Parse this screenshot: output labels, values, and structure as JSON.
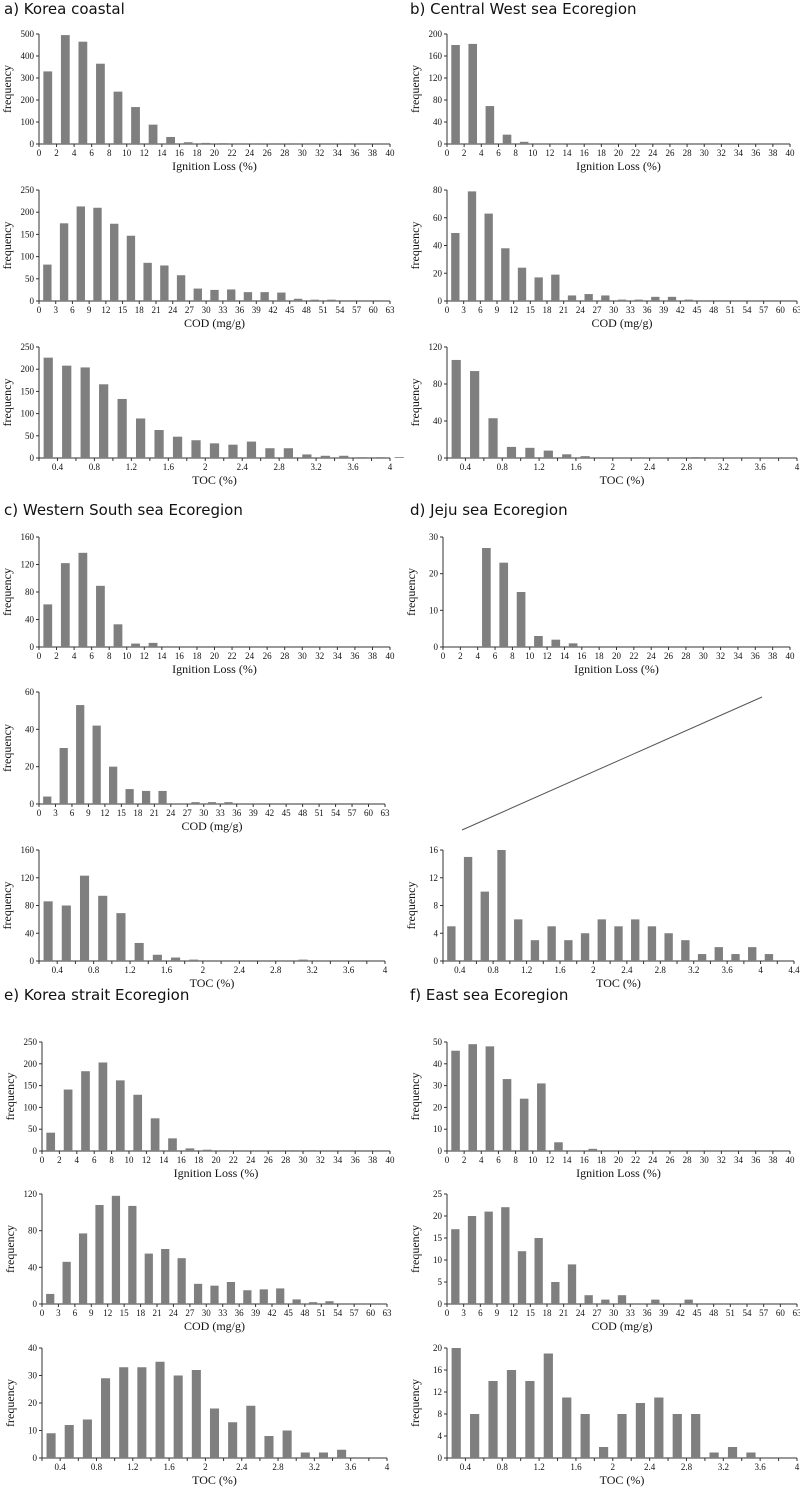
{
  "colors": {
    "bar": "#7f7f7f",
    "axis": "#333333",
    "line": "#555555"
  },
  "titles": [
    {
      "id": "a",
      "text": "a)  Korea  coastal"
    },
    {
      "id": "b",
      "text": "b)  Central  West  sea  Ecoregion"
    },
    {
      "id": "c",
      "text": "c)  Western  South  sea  Ecoregion"
    },
    {
      "id": "d",
      "text": "d)  Jeju  sea  Ecoregion"
    },
    {
      "id": "e",
      "text": "e)  Korea  strait  Ecoregion"
    },
    {
      "id": "f",
      "text": "f)  East  sea  Ecoregion"
    }
  ],
  "chart_data": [
    {
      "id": "a-ign",
      "type": "bar",
      "xlabel": "Ignition Loss (%)",
      "ylabel": "frequency",
      "xlim": [
        0,
        40
      ],
      "ylim": [
        0,
        500
      ],
      "yticks": [
        0,
        100,
        200,
        300,
        400,
        500
      ],
      "xticks": [
        "0",
        "2",
        "4",
        "6",
        "8",
        "10",
        "12",
        "14",
        "16",
        "18",
        "20",
        "22",
        "24",
        "26",
        "28",
        "30",
        "32",
        "34",
        "36",
        "38",
        "40"
      ],
      "values": [
        330,
        495,
        465,
        365,
        238,
        168,
        88,
        32,
        8,
        5,
        4,
        3,
        2,
        2,
        3,
        3,
        1,
        1,
        0,
        0
      ]
    },
    {
      "id": "a-cod",
      "type": "bar",
      "xlabel": "COD (mg/g)",
      "ylabel": "frequency",
      "xlim": [
        0,
        63
      ],
      "ylim": [
        0,
        250
      ],
      "yticks": [
        0,
        50,
        100,
        150,
        200,
        250
      ],
      "xticks": [
        "0",
        "3",
        "6",
        "9",
        "12",
        "15",
        "18",
        "21",
        "24",
        "27",
        "30",
        "33",
        "36",
        "39",
        "42",
        "45",
        "48",
        "51",
        "54",
        "57",
        "60",
        "63"
      ],
      "values": [
        82,
        175,
        213,
        210,
        174,
        147,
        86,
        80,
        58,
        28,
        25,
        26,
        20,
        20,
        19,
        5,
        3,
        3,
        0,
        0,
        0
      ]
    },
    {
      "id": "a-toc",
      "type": "bar",
      "xlabel": "TOC (%)",
      "ylabel": "frequency",
      "xlim": [
        0,
        4
      ],
      "ylim": [
        0,
        250
      ],
      "yticks": [
        0,
        50,
        100,
        150,
        200,
        250
      ],
      "xticks": [
        "",
        "0.4",
        "",
        "0.8",
        "",
        "1.2",
        "",
        "1.6",
        "",
        "2",
        "",
        "2.4",
        "",
        "2.8",
        "",
        "3.2",
        "",
        "3.6",
        "",
        "4"
      ],
      "values": [
        226,
        208,
        204,
        166,
        133,
        89,
        63,
        48,
        40,
        33,
        30,
        37,
        22,
        22,
        8,
        5,
        5,
        2,
        2,
        1
      ]
    },
    {
      "id": "b-ign",
      "type": "bar",
      "xlabel": "Ignition Loss (%)",
      "ylabel": "frequency",
      "xlim": [
        0,
        40
      ],
      "ylim": [
        0,
        200
      ],
      "yticks": [
        0,
        40,
        80,
        120,
        160,
        200
      ],
      "xticks": [
        "0",
        "2",
        "4",
        "6",
        "8",
        "10",
        "12",
        "14",
        "16",
        "18",
        "20",
        "22",
        "24",
        "26",
        "28",
        "30",
        "32",
        "34",
        "36",
        "38",
        "40"
      ],
      "values": [
        180,
        182,
        69,
        17,
        4,
        0,
        0,
        0,
        0,
        0,
        0,
        0,
        0,
        0,
        0,
        0,
        0,
        0,
        0,
        0
      ]
    },
    {
      "id": "b-cod",
      "type": "bar",
      "xlabel": "COD (mg/g)",
      "ylabel": "frequency",
      "xlim": [
        0,
        63
      ],
      "ylim": [
        0,
        80
      ],
      "yticks": [
        0,
        20,
        40,
        60,
        80
      ],
      "xticks": [
        "0",
        "3",
        "6",
        "9",
        "12",
        "15",
        "18",
        "21",
        "24",
        "27",
        "30",
        "33",
        "36",
        "39",
        "42",
        "45",
        "48",
        "51",
        "54",
        "57",
        "60",
        "63"
      ],
      "values": [
        49,
        79,
        63,
        38,
        24,
        17,
        19,
        4,
        5,
        4,
        1,
        1,
        3,
        3,
        1,
        0,
        0,
        0,
        0,
        0,
        0
      ]
    },
    {
      "id": "b-toc",
      "type": "bar",
      "xlabel": "TOC (%)",
      "ylabel": "frequency",
      "xlim": [
        0,
        4
      ],
      "ylim": [
        0,
        120
      ],
      "yticks": [
        0,
        40,
        80,
        120
      ],
      "xticks": [
        "",
        "0.4",
        "",
        "0.8",
        "",
        "1.2",
        "",
        "1.6",
        "",
        "2",
        "",
        "2.4",
        "",
        "2.8",
        "",
        "3.2",
        "",
        "3.6",
        "",
        "4"
      ],
      "values": [
        106,
        94,
        43,
        12,
        11,
        8,
        4,
        2,
        0,
        0,
        0,
        0,
        0,
        1,
        0,
        0,
        0,
        0,
        0,
        0
      ]
    },
    {
      "id": "c-ign",
      "type": "bar",
      "xlabel": "Ignition Loss (%)",
      "ylabel": "frequency",
      "xlim": [
        0,
        40
      ],
      "ylim": [
        0,
        160
      ],
      "yticks": [
        0,
        40,
        80,
        120,
        160
      ],
      "xticks": [
        "0",
        "2",
        "4",
        "6",
        "8",
        "10",
        "12",
        "14",
        "16",
        "18",
        "20",
        "22",
        "24",
        "26",
        "28",
        "30",
        "32",
        "34",
        "36",
        "38",
        "40"
      ],
      "values": [
        62,
        122,
        137,
        89,
        33,
        5,
        6,
        0,
        0,
        0,
        0,
        0,
        0,
        0,
        0,
        0,
        0,
        0,
        0,
        0
      ]
    },
    {
      "id": "c-cod",
      "type": "bar",
      "xlabel": "COD (mg/g)",
      "ylabel": "frequency",
      "xlim": [
        0,
        63
      ],
      "ylim": [
        0,
        60
      ],
      "yticks": [
        0,
        20,
        40,
        60
      ],
      "xticks": [
        "0",
        "3",
        "6",
        "9",
        "12",
        "15",
        "18",
        "21",
        "24",
        "27",
        "30",
        "33",
        "36",
        "39",
        "42",
        "45",
        "48",
        "51",
        "54",
        "57",
        "60",
        "63"
      ],
      "values": [
        4,
        30,
        53,
        42,
        20,
        8,
        7,
        7,
        0,
        1,
        1,
        1,
        0,
        0,
        0,
        0,
        0,
        0,
        0,
        0,
        0
      ]
    },
    {
      "id": "c-toc",
      "type": "bar",
      "xlabel": "TOC (%)",
      "ylabel": "frequency",
      "xlim": [
        0,
        4
      ],
      "ylim": [
        0,
        160
      ],
      "yticks": [
        0,
        40,
        80,
        120,
        160
      ],
      "xticks": [
        "",
        "0.4",
        "",
        "0.8",
        "",
        "1.2",
        "",
        "1.6",
        "",
        "2",
        "",
        "2.4",
        "",
        "2.8",
        "",
        "3.2",
        "",
        "3.6",
        "",
        "4"
      ],
      "values": [
        86,
        80,
        123,
        94,
        69,
        26,
        9,
        5,
        2,
        1,
        1,
        1,
        1,
        0,
        2,
        0,
        0,
        0,
        0,
        0
      ]
    },
    {
      "id": "d-ign",
      "type": "bar",
      "xlabel": "Ignition Loss (%)",
      "ylabel": "frequency",
      "xlim": [
        0,
        40
      ],
      "ylim": [
        0,
        30
      ],
      "yticks": [
        0,
        10,
        20,
        30
      ],
      "xticks": [
        "0",
        "2",
        "4",
        "6",
        "8",
        "10",
        "12",
        "14",
        "16",
        "18",
        "20",
        "22",
        "24",
        "26",
        "28",
        "30",
        "32",
        "34",
        "36",
        "38",
        "40"
      ],
      "values": [
        0,
        0,
        27,
        23,
        15,
        3,
        2,
        1,
        0,
        0,
        0,
        0,
        0,
        0,
        0,
        0,
        0,
        0,
        0,
        0
      ]
    },
    {
      "id": "d-toc",
      "type": "bar",
      "xlabel": "TOC (%)",
      "ylabel": "frequency",
      "xlim": [
        0,
        4.4
      ],
      "ylim": [
        0,
        16
      ],
      "yticks": [
        0,
        4,
        8,
        12,
        16
      ],
      "xticks": [
        "",
        "0.4",
        "",
        "0.8",
        "",
        "1.2",
        "",
        "1.6",
        "",
        "2",
        "",
        "2.4",
        "",
        "2.8",
        "",
        "3.2",
        "",
        "3.6",
        "",
        "4",
        "",
        "4.4"
      ],
      "values": [
        5,
        15,
        10,
        16,
        6,
        3,
        5,
        3,
        4,
        6,
        5,
        6,
        5,
        4,
        3,
        1,
        2,
        1,
        2,
        1,
        0
      ]
    },
    {
      "id": "e-ign",
      "type": "bar",
      "xlabel": "Ignition Loss (%)",
      "ylabel": "frequency",
      "xlim": [
        0,
        40
      ],
      "ylim": [
        0,
        250
      ],
      "yticks": [
        0,
        50,
        100,
        150,
        200,
        250
      ],
      "xticks": [
        "0",
        "2",
        "4",
        "6",
        "8",
        "10",
        "12",
        "14",
        "16",
        "18",
        "20",
        "22",
        "24",
        "26",
        "28",
        "30",
        "32",
        "34",
        "36",
        "38",
        "40"
      ],
      "values": [
        42,
        141,
        183,
        203,
        162,
        129,
        75,
        29,
        6,
        3,
        2,
        1,
        1,
        1,
        2,
        2,
        1,
        1,
        1,
        1
      ]
    },
    {
      "id": "e-cod",
      "type": "bar",
      "xlabel": "COD (mg/g)",
      "ylabel": "frequency",
      "xlim": [
        0,
        63
      ],
      "ylim": [
        0,
        120
      ],
      "yticks": [
        0,
        40,
        80,
        120
      ],
      "xticks": [
        "0",
        "3",
        "6",
        "9",
        "12",
        "15",
        "18",
        "21",
        "24",
        "27",
        "30",
        "33",
        "36",
        "39",
        "42",
        "45",
        "48",
        "51",
        "54",
        "57",
        "60",
        "63"
      ],
      "values": [
        11,
        46,
        77,
        108,
        118,
        107,
        55,
        60,
        50,
        22,
        20,
        24,
        15,
        16,
        17,
        5,
        2,
        3,
        0,
        0,
        0
      ]
    },
    {
      "id": "e-toc",
      "type": "bar",
      "xlabel": "TOC (%)",
      "ylabel": "frequency",
      "xlim": [
        0,
        4
      ],
      "ylim": [
        0,
        40
      ],
      "yticks": [
        0,
        10,
        20,
        30,
        40
      ],
      "xticks": [
        "",
        "0.4",
        "",
        "0.8",
        "",
        "1.2",
        "",
        "1.6",
        "",
        "2",
        "",
        "2.4",
        "",
        "2.8",
        "",
        "3.2",
        "",
        "3.6",
        "",
        "4"
      ],
      "values": [
        9,
        12,
        14,
        29,
        33,
        33,
        35,
        30,
        32,
        18,
        13,
        19,
        8,
        10,
        2,
        2,
        3,
        0,
        0,
        0
      ]
    },
    {
      "id": "f-ign",
      "type": "bar",
      "xlabel": "Ignition Loss (%)",
      "ylabel": "frequency",
      "xlim": [
        0,
        40
      ],
      "ylim": [
        0,
        50
      ],
      "yticks": [
        0,
        10,
        20,
        30,
        40,
        50
      ],
      "xticks": [
        "0",
        "2",
        "4",
        "6",
        "8",
        "10",
        "12",
        "14",
        "16",
        "18",
        "20",
        "22",
        "24",
        "26",
        "28",
        "30",
        "32",
        "34",
        "36",
        "38",
        "40"
      ],
      "values": [
        46,
        49,
        48,
        33,
        24,
        31,
        4,
        0,
        1,
        0,
        0,
        0,
        0,
        0,
        0,
        0,
        0,
        0,
        0,
        0
      ]
    },
    {
      "id": "f-cod",
      "type": "bar",
      "xlabel": "COD (mg/g)",
      "ylabel": "frequency",
      "xlim": [
        0,
        63
      ],
      "ylim": [
        0,
        25
      ],
      "yticks": [
        0,
        5,
        10,
        15,
        20,
        25
      ],
      "xticks": [
        "0",
        "3",
        "6",
        "9",
        "12",
        "15",
        "18",
        "21",
        "24",
        "27",
        "30",
        "33",
        "36",
        "39",
        "42",
        "45",
        "48",
        "51",
        "54",
        "57",
        "60",
        "63"
      ],
      "values": [
        17,
        20,
        21,
        22,
        12,
        15,
        5,
        9,
        2,
        1,
        2,
        0,
        1,
        0,
        1,
        0,
        0,
        0,
        0,
        0,
        0
      ]
    },
    {
      "id": "f-toc",
      "type": "bar",
      "xlabel": "TOC (%)",
      "ylabel": "frequency",
      "xlim": [
        0,
        4
      ],
      "ylim": [
        0,
        20
      ],
      "yticks": [
        0,
        4,
        8,
        12,
        16,
        20
      ],
      "xticks": [
        "",
        "0.4",
        "",
        "0.8",
        "",
        "1.2",
        "",
        "1.6",
        "",
        "2",
        "",
        "2.4",
        "",
        "2.8",
        "",
        "3.2",
        "",
        "3.6",
        "",
        "4"
      ],
      "values": [
        20,
        8,
        14,
        16,
        14,
        19,
        11,
        8,
        2,
        8,
        10,
        11,
        8,
        8,
        1,
        2,
        1,
        0,
        0,
        0
      ]
    }
  ]
}
